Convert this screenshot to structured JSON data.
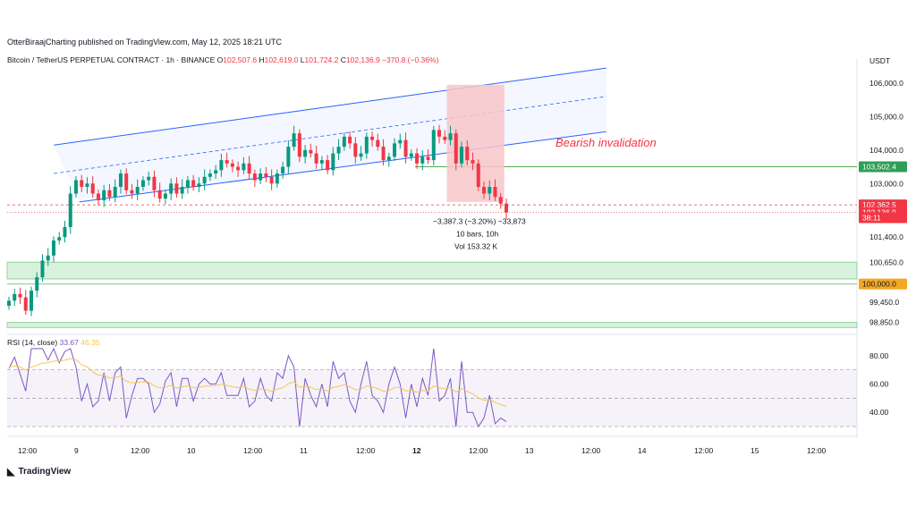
{
  "header": {
    "published": "OtterBiraajCharting published on TradingView.com, May 12, 2025 18:21 UTC"
  },
  "symbol": {
    "name": "Bitcoin / TetherUS PERPETUAL CONTRACT · 1h · BINANCE",
    "o_label": "O",
    "o": "102,507.6",
    "h_label": "H",
    "h": "102,619.0",
    "l_label": "L",
    "l": "101,724.2",
    "c_label": "C",
    "c": "102,136.9",
    "change": "−370.8 (−0.36%)"
  },
  "axis_currency": "USDT",
  "annotation": "Bearish invalidation",
  "measure": {
    "line1": "−3,387.3 (−3.20%) −33,873",
    "line2": "10 bars, 10h",
    "line3": "Vol 153.32 K"
  },
  "price_tags": [
    {
      "text": "103,502.4",
      "bg": "#2e9e56"
    },
    {
      "text": "102,362.5",
      "bg": "#f23645"
    },
    {
      "text": "102,136.9",
      "bg": "#f23645"
    },
    {
      "text": "38:11",
      "bg": "#f23645"
    },
    {
      "text": "100,000.0",
      "bg": "#f5a623"
    }
  ],
  "rsi": {
    "label": "RSI (14, close)",
    "value1": "33.67",
    "value2": "46.35"
  },
  "footer": {
    "brand": "TradingView"
  },
  "colors": {
    "bull": "#089981",
    "bear": "#f23645",
    "channel": "#2962ff",
    "rsi_line": "#7e57c2",
    "rsi_ma": "#f7c74f",
    "zone": "#d9f2dd",
    "bear_box": "#f7c5c9"
  },
  "chart_data": {
    "type": "candlestick",
    "price_axis_ticks": [
      "106,000.0",
      "105,000.0",
      "104,000.0",
      "103,000.0",
      "101,400.0",
      "100,650.0",
      "99,450.0",
      "98,850.0"
    ],
    "rsi_axis_ticks": [
      "80.00",
      "60.00",
      "40.00"
    ],
    "time_ticks": [
      "12:00",
      "9",
      "12:00",
      "10",
      "12:00",
      "11",
      "12:00",
      "12",
      "12:00",
      "13",
      "12:00",
      "14",
      "12:00",
      "15",
      "12:00"
    ],
    "support_zones": [
      [
        100150,
        100650
      ],
      [
        98700,
        98850
      ]
    ],
    "channel": {
      "upper": [
        [
          0.055,
          104150
        ],
        [
          0.705,
          106450
        ]
      ],
      "mid": [
        [
          0.055,
          103300
        ],
        [
          0.705,
          105600
        ]
      ],
      "lower": [
        [
          0.085,
          102450
        ],
        [
          0.705,
          104550
        ]
      ]
    },
    "bearish_invalidation_level": 103502.4,
    "dashed_level": 102362.5,
    "last_price": 102136.9,
    "closes": [
      99500,
      99700,
      99600,
      99200,
      99800,
      100200,
      100700,
      100850,
      101300,
      101400,
      101700,
      102700,
      103100,
      102900,
      103000,
      102700,
      102500,
      102800,
      102600,
      102900,
      103300,
      102800,
      102700,
      102900,
      103100,
      103200,
      102800,
      102550,
      102700,
      103000,
      102700,
      102900,
      103100,
      102900,
      103000,
      103200,
      103300,
      103400,
      103700,
      103600,
      103500,
      103400,
      103600,
      103300,
      103100,
      103300,
      103200,
      103000,
      103300,
      103500,
      104100,
      104500,
      103800,
      104000,
      103900,
      103600,
      103700,
      103400,
      103900,
      104100,
      104400,
      104200,
      103800,
      103900,
      104400,
      104300,
      104100,
      103700,
      103800,
      104200,
      104300,
      103800,
      103900,
      103600,
      103800,
      103700,
      104600,
      104400,
      104300,
      104500,
      103600,
      104100,
      103700,
      103600,
      102900,
      102700,
      102900,
      102600,
      102400,
      102137
    ]
  }
}
